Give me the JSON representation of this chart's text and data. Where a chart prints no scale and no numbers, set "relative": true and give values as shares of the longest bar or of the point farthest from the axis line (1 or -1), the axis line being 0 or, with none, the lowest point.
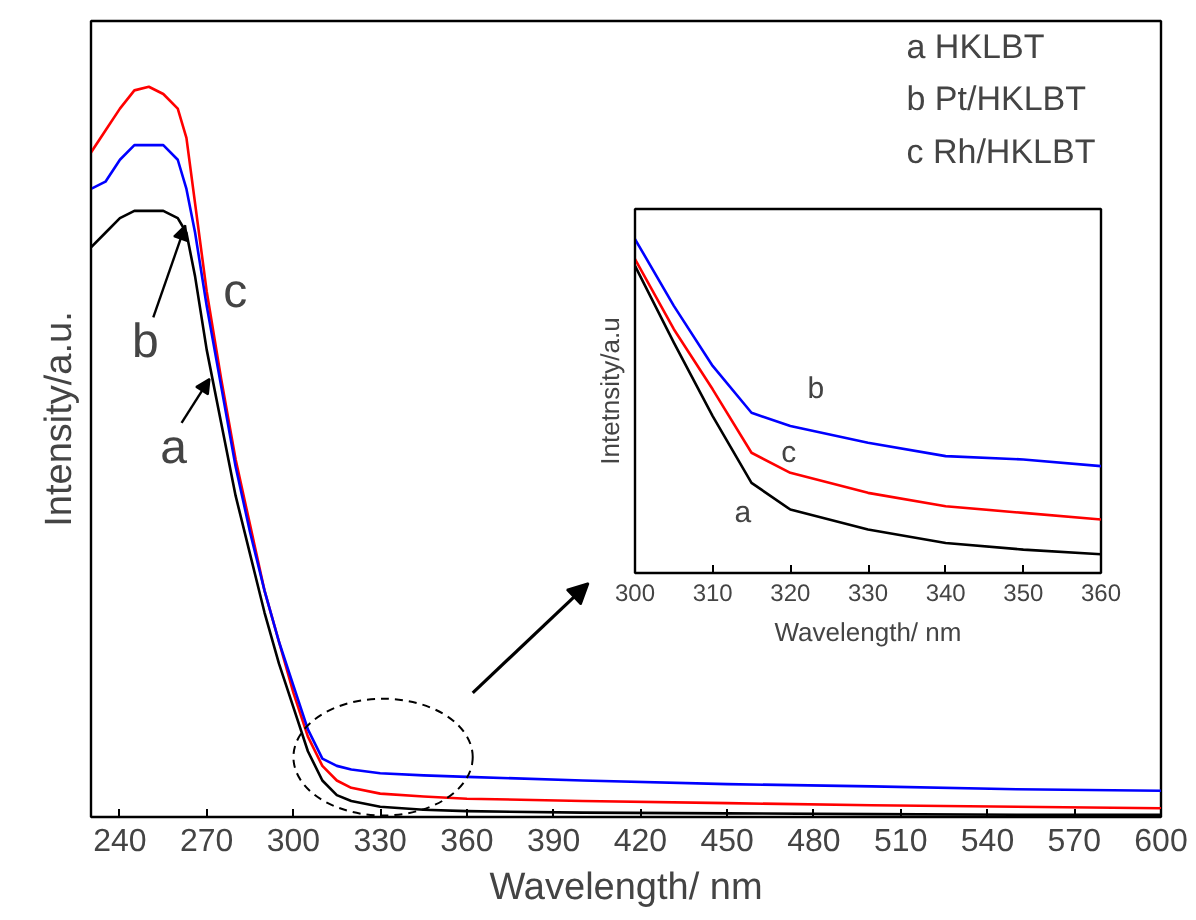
{
  "chart_data": [
    {
      "type": "line",
      "xlabel": "Wavelength/ nm",
      "ylabel": "Intensity/a.u.",
      "relative": true,
      "xlim": [
        230,
        600
      ],
      "xticks": [
        240,
        270,
        300,
        330,
        360,
        390,
        420,
        450,
        480,
        510,
        540,
        570,
        600
      ],
      "tick_labels": "x",
      "grid": false,
      "x": [
        230,
        235,
        240,
        245,
        250,
        255,
        260,
        263,
        266,
        270,
        275,
        280,
        285,
        290,
        295,
        300,
        305,
        310,
        315,
        320,
        330,
        345,
        360,
        400,
        450,
        500,
        550,
        600
      ],
      "series": [
        {
          "color": "#000000",
          "values": [
            0.78,
            0.8,
            0.82,
            0.83,
            0.83,
            0.83,
            0.82,
            0.8,
            0.74,
            0.64,
            0.54,
            0.44,
            0.36,
            0.28,
            0.21,
            0.15,
            0.09,
            0.05,
            0.03,
            0.022,
            0.014,
            0.01,
            0.008,
            0.006,
            0.005,
            0.004,
            0.003,
            0.003
          ]
        },
        {
          "color": "#ff0000",
          "values": [
            0.91,
            0.94,
            0.97,
            0.995,
            1.0,
            0.99,
            0.97,
            0.93,
            0.84,
            0.72,
            0.6,
            0.49,
            0.4,
            0.31,
            0.24,
            0.17,
            0.11,
            0.07,
            0.05,
            0.04,
            0.032,
            0.028,
            0.025,
            0.022,
            0.019,
            0.016,
            0.014,
            0.012
          ]
        },
        {
          "color": "#0000ff",
          "values": [
            0.86,
            0.87,
            0.9,
            0.92,
            0.92,
            0.92,
            0.9,
            0.86,
            0.8,
            0.7,
            0.59,
            0.48,
            0.39,
            0.31,
            0.24,
            0.18,
            0.12,
            0.08,
            0.07,
            0.065,
            0.06,
            0.057,
            0.055,
            0.05,
            0.045,
            0.042,
            0.038,
            0.036
          ]
        }
      ],
      "annotations": [
        "a HKLBT",
        "b Pt/HKLBT",
        "c Rh/HKLBT",
        {
          "text": "a",
          "x": 271,
          "y": 0.6
        },
        {
          "text": "b",
          "x": 262.6,
          "y": 0.81
        },
        {
          "text": "c",
          "x": 273,
          "y": 0.72
        }
      ]
    },
    {
      "type": "line",
      "xlabel": "Wavelength/ nm",
      "ylabel": "Intetnsity/a.u",
      "relative": true,
      "xlim": [
        300,
        360
      ],
      "xticks": [
        300,
        310,
        320,
        330,
        340,
        350,
        360
      ],
      "tick_labels": "x",
      "grid": false,
      "x": [
        300,
        305,
        310,
        315,
        320,
        330,
        340,
        350,
        360
      ],
      "series": [
        {
          "color": "#000000",
          "values": [
            0.92,
            0.69,
            0.47,
            0.27,
            0.19,
            0.13,
            0.09,
            0.07,
            0.056
          ]
        },
        {
          "color": "#ff0000",
          "values": [
            0.94,
            0.73,
            0.55,
            0.36,
            0.3,
            0.24,
            0.2,
            0.18,
            0.16
          ]
        },
        {
          "color": "#0000ff",
          "values": [
            1.0,
            0.8,
            0.62,
            0.48,
            0.44,
            0.39,
            0.35,
            0.34,
            0.32
          ]
        }
      ],
      "annotations": [
        "b",
        "c",
        "a"
      ]
    }
  ]
}
